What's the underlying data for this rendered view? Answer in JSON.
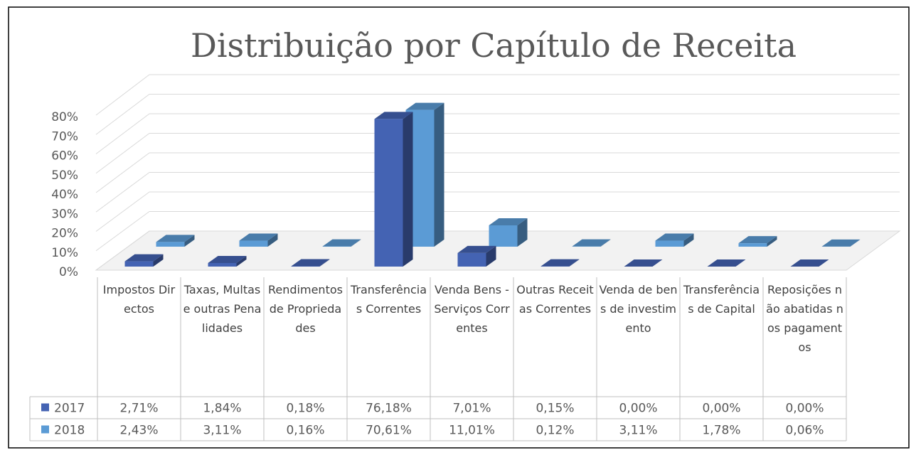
{
  "chart_data": {
    "type": "bar3d",
    "title": "Distribuição por Capítulo de Receita",
    "categories": [
      "Impostos Directos",
      "Taxas, Multas e outras Penalidades",
      "Rendimentos de Propriedades",
      "Transferências Correntes",
      "Venda Bens - Serviços Correntes",
      "Outras Receitas Correntes",
      "Venda de bens de investimento",
      "Transferências de Capital",
      "Reposições não abatidas nos pagamentos"
    ],
    "series": [
      {
        "name": "2017",
        "color": "#4463b3",
        "values": [
          2.71,
          1.84,
          0.18,
          76.18,
          7.01,
          0.15,
          0.0,
          0.0,
          0.0
        ],
        "value_labels": [
          "2,71%",
          "1,84%",
          "0,18%",
          "76,18%",
          "7,01%",
          "0,15%",
          "0,00%",
          "0,00%",
          "0,00%"
        ]
      },
      {
        "name": "2018",
        "color": "#5b9bd5",
        "values": [
          2.43,
          3.11,
          0.16,
          70.61,
          11.01,
          0.12,
          3.11,
          1.78,
          0.06
        ],
        "value_labels": [
          "2,43%",
          "3,11%",
          "0,16%",
          "70,61%",
          "11,01%",
          "0,12%",
          "3,11%",
          "1,78%",
          "0,06%"
        ]
      }
    ],
    "ylim": [
      0,
      80
    ],
    "yticks": [
      {
        "value": 0,
        "label": "0%"
      },
      {
        "value": 10,
        "label": "10%"
      },
      {
        "value": 20,
        "label": "20%"
      },
      {
        "value": 30,
        "label": "30%"
      },
      {
        "value": 40,
        "label": "40%"
      },
      {
        "value": 50,
        "label": "50%"
      },
      {
        "value": 60,
        "label": "60%"
      },
      {
        "value": 70,
        "label": "70%"
      },
      {
        "value": 80,
        "label": "80%"
      }
    ],
    "grid": true
  }
}
